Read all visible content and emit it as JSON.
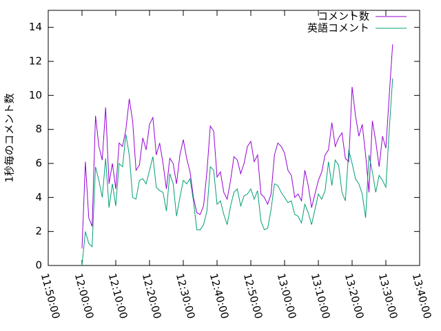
{
  "chart_data": {
    "type": "line",
    "y_label": "1秒毎のコメント数",
    "x": [
      "12:00:00",
      "12:01:00",
      "12:02:00",
      "12:03:00",
      "12:04:00",
      "12:05:00",
      "12:06:00",
      "12:07:00",
      "12:08:00",
      "12:09:00",
      "12:10:00",
      "12:11:00",
      "12:12:00",
      "12:13:00",
      "12:14:00",
      "12:15:00",
      "12:16:00",
      "12:17:00",
      "12:18:00",
      "12:19:00",
      "12:20:00",
      "12:21:00",
      "12:22:00",
      "12:23:00",
      "12:24:00",
      "12:25:00",
      "12:26:00",
      "12:27:00",
      "12:28:00",
      "12:29:00",
      "12:30:00",
      "12:31:00",
      "12:32:00",
      "12:33:00",
      "12:34:00",
      "12:35:00",
      "12:36:00",
      "12:37:00",
      "12:38:00",
      "12:39:00",
      "12:40:00",
      "12:41:00",
      "12:42:00",
      "12:43:00",
      "12:44:00",
      "12:45:00",
      "12:46:00",
      "12:47:00",
      "12:48:00",
      "12:49:00",
      "12:50:00",
      "12:51:00",
      "12:52:00",
      "12:53:00",
      "12:54:00",
      "12:55:00",
      "12:56:00",
      "12:57:00",
      "12:58:00",
      "12:59:00",
      "13:00:00",
      "13:01:00",
      "13:02:00",
      "13:03:00",
      "13:04:00",
      "13:05:00",
      "13:06:00",
      "13:07:00",
      "13:08:00",
      "13:09:00",
      "13:10:00",
      "13:11:00",
      "13:12:00",
      "13:13:00",
      "13:14:00",
      "13:15:00",
      "13:16:00",
      "13:17:00",
      "13:18:00",
      "13:19:00",
      "13:20:00",
      "13:21:00",
      "13:22:00",
      "13:23:00",
      "13:24:00",
      "13:25:00",
      "13:26:00",
      "13:27:00",
      "13:28:00",
      "13:29:00",
      "13:30:00",
      "13:31:00",
      "13:32:00"
    ],
    "series": [
      {
        "name": "コメント数",
        "color": "#9400d3",
        "values": [
          1.0,
          6.1,
          2.8,
          2.3,
          8.8,
          7,
          6.2,
          9.3,
          4.8,
          6,
          4.5,
          7.2,
          7,
          8,
          9.8,
          8.5,
          5.6,
          5.9,
          7.5,
          6.8,
          8.3,
          8.7,
          6.5,
          7.2,
          6,
          4.5,
          6.3,
          6,
          4.8,
          6.5,
          7.4,
          6.3,
          5.5,
          4,
          3.1,
          3.0,
          3.5,
          5.5,
          8.2,
          7.9,
          5.2,
          5.5,
          4.3,
          3.9,
          5,
          6.4,
          6.2,
          5.4,
          6,
          7,
          7.3,
          6.1,
          6.5,
          4.2,
          4,
          3.6,
          4.2,
          6.5,
          7.2,
          7,
          6.6,
          5.6,
          5.3,
          4,
          4.2,
          3.8,
          5.6,
          4.7,
          3.4,
          4.2,
          5,
          5.5,
          6.5,
          6.8,
          8.4,
          7,
          7.5,
          7.8,
          6.3,
          6.1,
          10.5,
          8.8,
          7.6,
          8.3,
          6.5,
          4.3,
          8.5,
          7.3,
          5.8,
          7.6,
          6.9,
          10,
          13
        ]
      },
      {
        "name": "英語コメント",
        "color": "#009e73",
        "values": [
          0,
          2,
          1.3,
          1.1,
          5.8,
          5,
          4,
          6.3,
          3.4,
          4.8,
          3.5,
          6,
          5.8,
          7.7,
          6.5,
          4,
          3.9,
          5,
          5.1,
          4.8,
          5.6,
          6.4,
          4.6,
          4.4,
          4.3,
          3.2,
          5.4,
          4.8,
          2.9,
          4,
          5,
          4.8,
          5.1,
          3.8,
          2.1,
          2.1,
          2.4,
          3.2,
          5.8,
          5.6,
          3.6,
          3.8,
          3,
          2.4,
          3.5,
          4.3,
          4.5,
          3.5,
          4.1,
          4.2,
          4.5,
          3.9,
          4.4,
          2.6,
          2.1,
          2.2,
          3.3,
          4.8,
          4.7,
          4.3,
          4,
          3.7,
          3.8,
          3,
          2.9,
          2.5,
          3.6,
          3.1,
          2.4,
          3.3,
          4.2,
          3.9,
          4.4,
          6.1,
          4.7,
          6.2,
          5.9,
          4.3,
          3.8,
          6.8,
          6,
          5.1,
          4.8,
          4.2,
          2.8,
          6.5,
          5.5,
          4.3,
          5.3,
          5,
          4.6,
          8,
          11
        ]
      }
    ],
    "xlim": [
      "11:50:00",
      "13:40:00"
    ],
    "xticks": [
      "11:50:00",
      "12:00:00",
      "12:10:00",
      "12:20:00",
      "12:30:00",
      "12:40:00",
      "12:50:00",
      "13:00:00",
      "13:10:00",
      "13:20:00",
      "13:30:00",
      "13:40:00"
    ],
    "ylim": [
      0,
      15
    ],
    "yticks": [
      0,
      2,
      4,
      6,
      8,
      10,
      12,
      14
    ],
    "legend": "top-right"
  }
}
